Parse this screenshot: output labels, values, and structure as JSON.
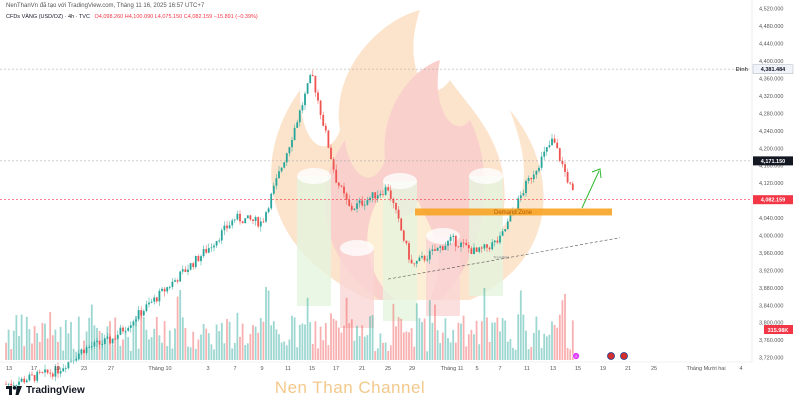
{
  "header": {
    "publish_line": "NenThanVn đã tạo với TradingView.com, Tháng 11 16, 2025 16:57 UTC+7"
  },
  "symbol": {
    "name": "CFDs VÀNG (USD/OZ) · 4h · TVC",
    "ohlc_values": "O4,098.260 H4,100.090 L4,075.150 C4,082.159 −15.891 (−0.39%)"
  },
  "branding": {
    "logo_text": "TradingView",
    "watermark": "Nen Than Channel"
  },
  "annotations": {
    "demand_zone_label": "Demand Zone",
    "trendline_label": "Trendline",
    "peak_label": "Đỉnh"
  },
  "colors": {
    "up": "#26a69a",
    "down": "#ef5350",
    "zone": "#f7a325",
    "last_price_bg": "#f23645",
    "ref_price_bg": "#131722"
  },
  "price_tags": {
    "peak": "4,381.484",
    "reference": "4,171.150",
    "last": "4,082.159",
    "volume": "315.98K"
  },
  "chart_data": {
    "type": "candlestick",
    "timeframe": "4h",
    "y_axis": {
      "ticks": [
        "4,520.000",
        "4,480.000",
        "4,440.000",
        "4,400.000",
        "4,360.000",
        "4,320.000",
        "4,280.000",
        "4,240.000",
        "4,200.000",
        "4,160.000",
        "4,120.000",
        "4,080.000",
        "4,040.000",
        "4,000.000",
        "3,960.000",
        "3,920.000",
        "3,880.000",
        "3,840.000",
        "3,800.000",
        "3,760.000",
        "3,720.000"
      ],
      "range": [
        3710,
        4540
      ]
    },
    "x_axis": {
      "ticks": [
        "13",
        "17",
        "19",
        "23",
        "27",
        "Tháng 10",
        "3",
        "7",
        "9",
        "11",
        "15",
        "17",
        "21",
        "25",
        "29",
        "Tháng 11",
        "5",
        "7",
        "11",
        "13",
        "15",
        "19",
        "21",
        "25",
        "Tháng Mười hai",
        "4"
      ]
    },
    "key_levels": {
      "peak": 4381.484,
      "reference": 4171.15,
      "last": 4082.159
    },
    "demand_zone": {
      "low": 4046,
      "high": 4062
    },
    "trendline": {
      "from": [
        "Tháng 10 29",
        3900
      ],
      "to": [
        "Tháng 11 21",
        3995
      ]
    },
    "price_path_anchors": [
      {
        "t": "13",
        "close": 3660
      },
      {
        "t": "19",
        "close": 3690
      },
      {
        "t": "23",
        "close": 3740
      },
      {
        "t": "27",
        "close": 3760
      },
      {
        "t": "Tháng 10",
        "close": 3865
      },
      {
        "t": "7",
        "close": 3970
      },
      {
        "t": "9",
        "close": 4040
      },
      {
        "t": "11",
        "close": 4030
      },
      {
        "t": "15",
        "close": 4200
      },
      {
        "t": "17",
        "close": 4370
      },
      {
        "t": "21",
        "close": 4130
      },
      {
        "t": "21 b",
        "close": 4060
      },
      {
        "t": "25",
        "close": 4110
      },
      {
        "t": "29",
        "close": 3930
      },
      {
        "t": "Tháng 11",
        "close": 3990
      },
      {
        "t": "5",
        "close": 3960
      },
      {
        "t": "7",
        "close": 3990
      },
      {
        "t": "11",
        "close": 4120
      },
      {
        "t": "13",
        "close": 4220
      },
      {
        "t": "15",
        "close": 4082
      }
    ]
  }
}
